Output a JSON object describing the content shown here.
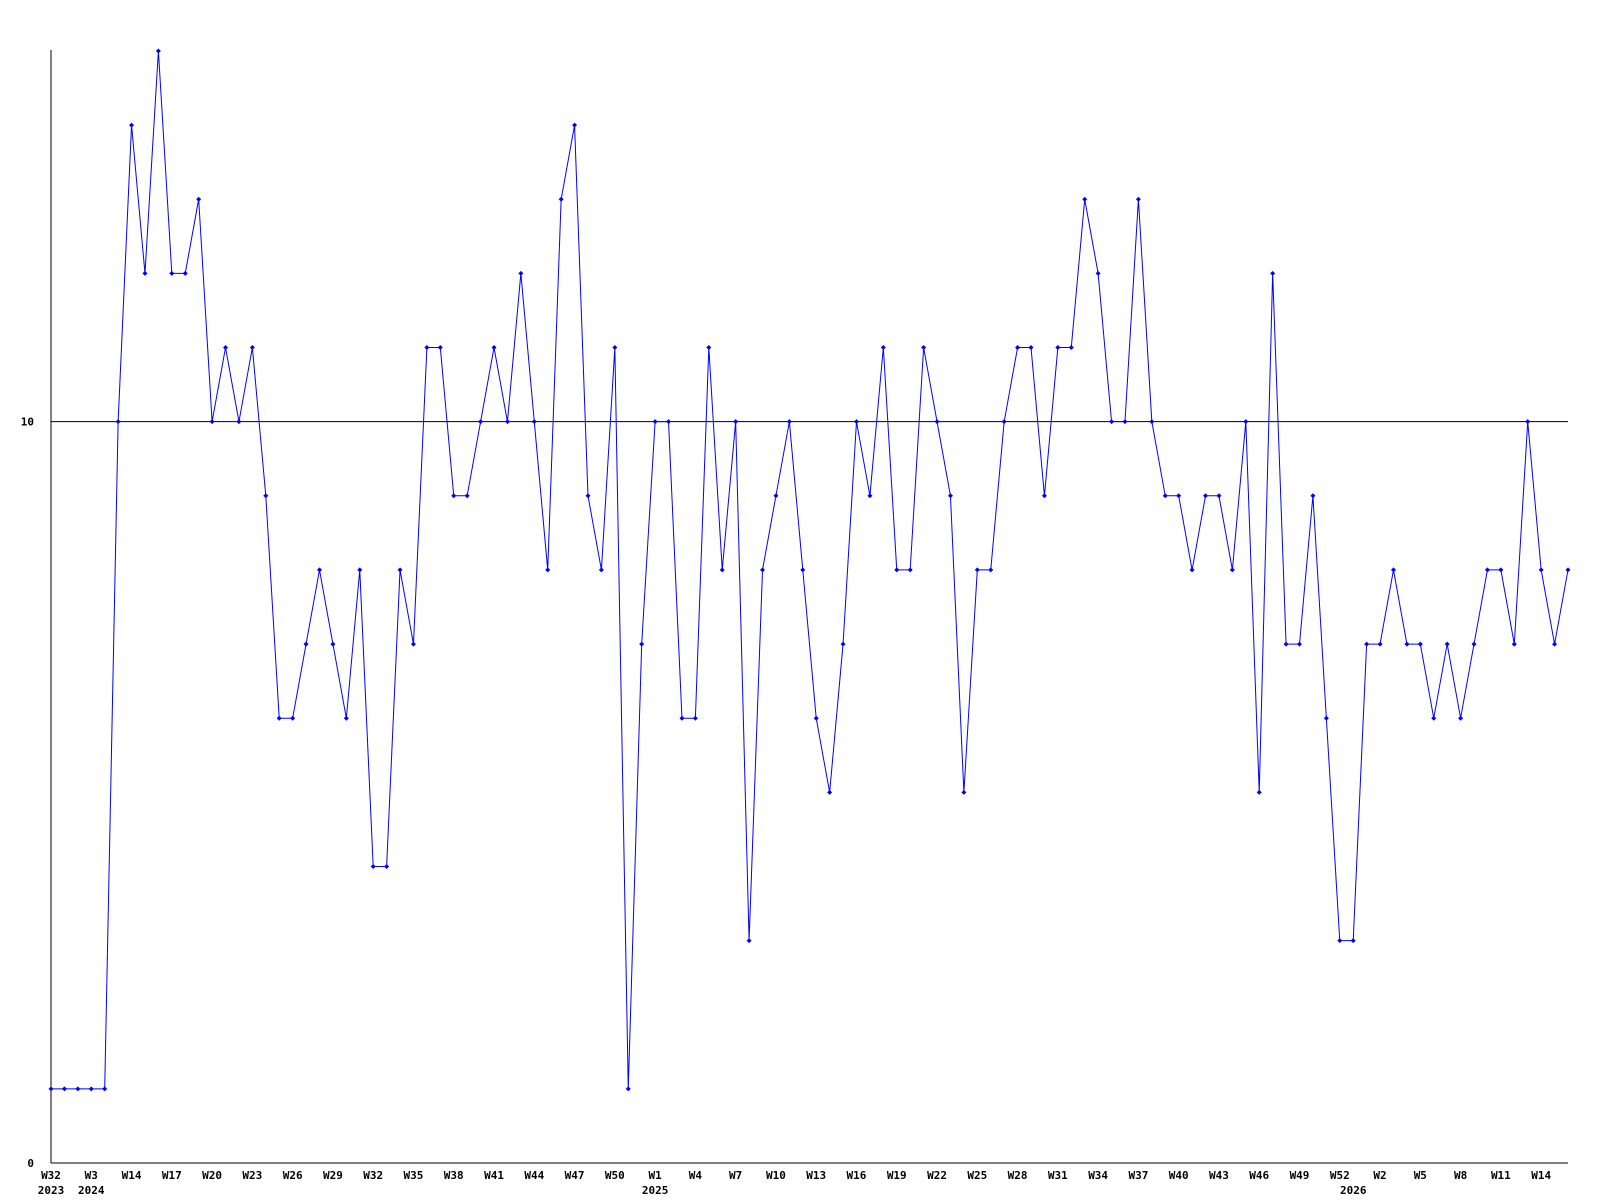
{
  "chart_data": {
    "type": "line",
    "categories": [
      "W32",
      null,
      null,
      "W3",
      null,
      null,
      "W14",
      null,
      null,
      "W17",
      null,
      null,
      "W20",
      null,
      null,
      "W23",
      null,
      null,
      "W26",
      null,
      null,
      "W29",
      null,
      null,
      "W32",
      null,
      null,
      "W35",
      null,
      null,
      "W38",
      null,
      null,
      "W41",
      null,
      null,
      "W44",
      null,
      null,
      "W47",
      null,
      null,
      "W50",
      null,
      null,
      "W1",
      null,
      null,
      "W4",
      null,
      null,
      "W7",
      null,
      null,
      "W10",
      null,
      null,
      "W13",
      null,
      null,
      "W16",
      null,
      null,
      "W19",
      null,
      null,
      "W22",
      null,
      null,
      "W25",
      null,
      null,
      "W28",
      null,
      null,
      "W31",
      null,
      null,
      "W34",
      null,
      null,
      "W37",
      null,
      null,
      "W40",
      null,
      null,
      "W43",
      null,
      null,
      "W46",
      null,
      null,
      "W49",
      null,
      null,
      "W52",
      null,
      null,
      "W2",
      null,
      null,
      "W5",
      null,
      null,
      "W8",
      null,
      null,
      "W11",
      null,
      null,
      "W14",
      null,
      null
    ],
    "category_years": [
      "2023",
      null,
      null,
      "2024",
      null,
      null,
      null,
      null,
      null,
      null,
      null,
      null,
      null,
      null,
      null,
      null,
      null,
      null,
      null,
      null,
      null,
      null,
      null,
      null,
      null,
      null,
      null,
      null,
      null,
      null,
      null,
      null,
      null,
      null,
      null,
      null,
      null,
      null,
      null,
      null,
      null,
      null,
      null,
      null,
      null,
      "2025",
      null,
      null,
      null,
      null,
      null,
      null,
      null,
      null,
      null,
      null,
      null,
      null,
      null,
      null,
      null,
      null,
      null,
      null,
      null,
      null,
      null,
      null,
      null,
      null,
      null,
      null,
      null,
      null,
      null,
      null,
      null,
      null,
      null,
      null,
      null,
      null,
      null,
      null,
      null,
      null,
      null,
      null,
      null,
      null,
      null,
      null,
      null,
      null,
      null,
      null,
      null,
      "2026",
      null,
      null,
      null,
      null,
      null,
      null,
      null,
      null,
      null,
      null,
      null,
      null,
      null,
      null,
      null,
      null
    ],
    "values": [
      1,
      1,
      1,
      1,
      1,
      10,
      14,
      12,
      15,
      12,
      12,
      13,
      10,
      11,
      10,
      11,
      9,
      6,
      6,
      7,
      8,
      7,
      6,
      8,
      4,
      4,
      8,
      7,
      11,
      11,
      9,
      9,
      10,
      11,
      10,
      12,
      10,
      8,
      13,
      14,
      9,
      8,
      11,
      1,
      7,
      10,
      10,
      6,
      6,
      11,
      8,
      10,
      3,
      8,
      9,
      10,
      8,
      6,
      5,
      7,
      10,
      9,
      11,
      8,
      8,
      11,
      10,
      9,
      5,
      8,
      8,
      10,
      11,
      11,
      9,
      11,
      11,
      13,
      12,
      10,
      10,
      13,
      10,
      9,
      9,
      8,
      9,
      9,
      8,
      10,
      5,
      12,
      7,
      7,
      9,
      6,
      3,
      3,
      7,
      7,
      8,
      7,
      7,
      6,
      7,
      6,
      7,
      8,
      8,
      7,
      10,
      8,
      7,
      8
    ],
    "color": "#0000ff",
    "ylim": [
      0,
      15
    ],
    "yticks": [
      0,
      10
    ],
    "grid": true
  }
}
